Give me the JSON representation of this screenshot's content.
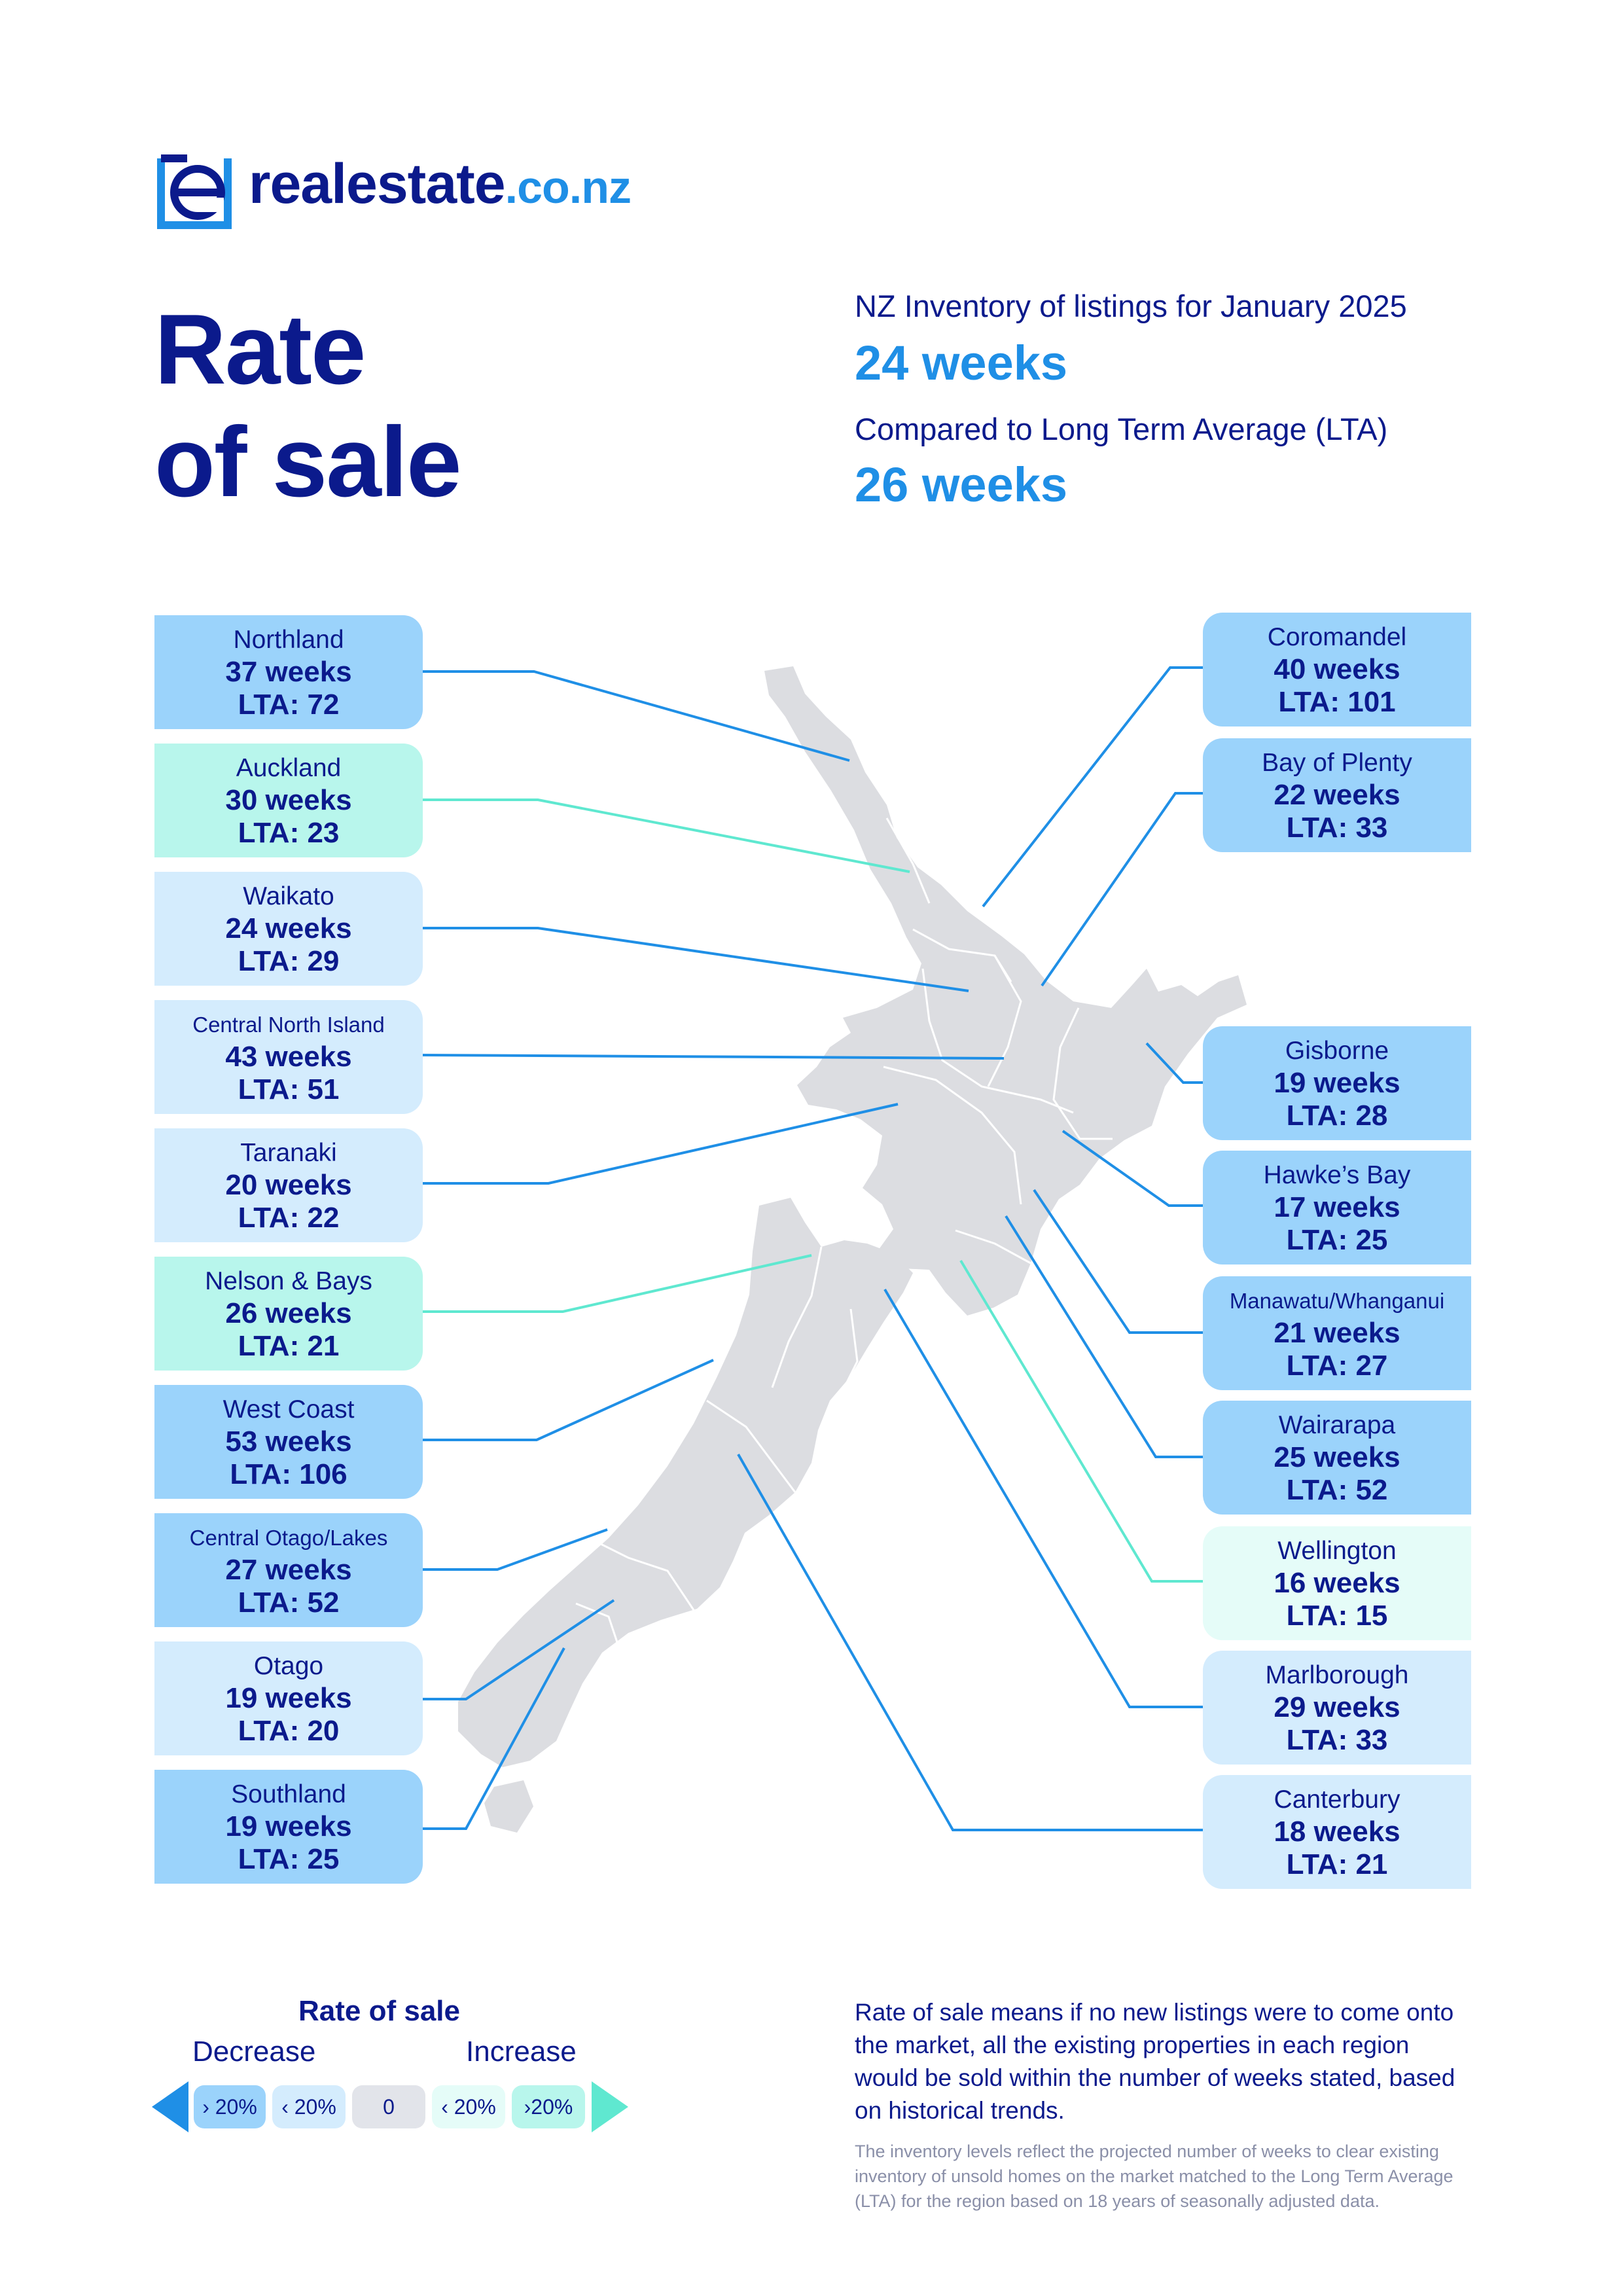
{
  "brand": {
    "name": "realestate",
    "tld": ".co.nz"
  },
  "title": {
    "line1": "Rate",
    "line2": "of sale"
  },
  "summary": {
    "inventory_label": "NZ Inventory of listings for January 2025",
    "inventory_value": "24 weeks",
    "lta_label": "Compared to Long Term Average (LTA)",
    "lta_value": "26 weeks"
  },
  "colors": {
    "navy": "#0b1a8c",
    "accent_blue": "#1f8fe6",
    "decrease_big": "#9bd3fb",
    "decrease_small": "#d4ecfd",
    "neutral": "#e2e4ea",
    "increase_small": "#e5fcf8",
    "increase_big": "#b8f6ec",
    "map_land": "#dcdde1"
  },
  "regions_left": [
    {
      "name": "Northland",
      "weeks": "37 weeks",
      "lta": "LTA: 72",
      "category": "decrease_big"
    },
    {
      "name": "Auckland",
      "weeks": "30 weeks",
      "lta": "LTA: 23",
      "category": "increase_big"
    },
    {
      "name": "Waikato",
      "weeks": "24 weeks",
      "lta": "LTA: 29",
      "category": "decrease_small"
    },
    {
      "name": "Central North Island",
      "weeks": "43 weeks",
      "lta": "LTA: 51",
      "category": "decrease_small"
    },
    {
      "name": "Taranaki",
      "weeks": "20 weeks",
      "lta": "LTA: 22",
      "category": "decrease_small"
    },
    {
      "name": "Nelson & Bays",
      "weeks": "26 weeks",
      "lta": "LTA: 21",
      "category": "increase_big"
    },
    {
      "name": "West Coast",
      "weeks": "53 weeks",
      "lta": "LTA: 106",
      "category": "decrease_big"
    },
    {
      "name": "Central Otago/Lakes",
      "weeks": "27 weeks",
      "lta": "LTA: 52",
      "category": "decrease_big"
    },
    {
      "name": "Otago",
      "weeks": "19 weeks",
      "lta": "LTA: 20",
      "category": "decrease_small"
    },
    {
      "name": "Southland",
      "weeks": "19 weeks",
      "lta": "LTA: 25",
      "category": "decrease_big"
    }
  ],
  "regions_right": [
    {
      "name": "Coromandel",
      "weeks": "40 weeks",
      "lta": "LTA: 101",
      "category": "decrease_big"
    },
    {
      "name": "Bay of Plenty",
      "weeks": "22 weeks",
      "lta": "LTA: 33",
      "category": "decrease_big"
    },
    {
      "name": "Gisborne",
      "weeks": "19 weeks",
      "lta": "LTA: 28",
      "category": "decrease_big"
    },
    {
      "name": "Hawke’s Bay",
      "weeks": "17 weeks",
      "lta": "LTA: 25",
      "category": "decrease_big"
    },
    {
      "name": "Manawatu/Whanganui",
      "weeks": "21 weeks",
      "lta": "LTA: 27",
      "category": "decrease_big"
    },
    {
      "name": "Wairarapa",
      "weeks": "25 weeks",
      "lta": "LTA: 52",
      "category": "decrease_big"
    },
    {
      "name": "Wellington",
      "weeks": "16 weeks",
      "lta": "LTA: 15",
      "category": "increase_small"
    },
    {
      "name": "Marlborough",
      "weeks": "29 weeks",
      "lta": "LTA: 33",
      "category": "decrease_small"
    },
    {
      "name": "Canterbury",
      "weeks": "18 weeks",
      "lta": "LTA: 21",
      "category": "decrease_small"
    }
  ],
  "legend": {
    "title": "Rate of sale",
    "decrease_label": "Decrease",
    "increase_label": "Increase",
    "chips": [
      {
        "label": "› 20%",
        "category": "decrease_big"
      },
      {
        "label": "‹ 20%",
        "category": "decrease_small"
      },
      {
        "label": "0",
        "category": "neutral"
      },
      {
        "label": "‹ 20%",
        "category": "increase_small"
      },
      {
        "label": "›20%",
        "category": "increase_big"
      }
    ]
  },
  "description": "Rate of sale means if no new listings were to come onto the market, all the existing properties in each region would be sold within the number of weeks stated, based on historical trends.",
  "footnote": "The inventory levels reflect the projected number of weeks to clear existing inventory of unsold homes on the market matched to the Long Term Average (LTA) for the region based on 18 years of seasonally adjusted data."
}
